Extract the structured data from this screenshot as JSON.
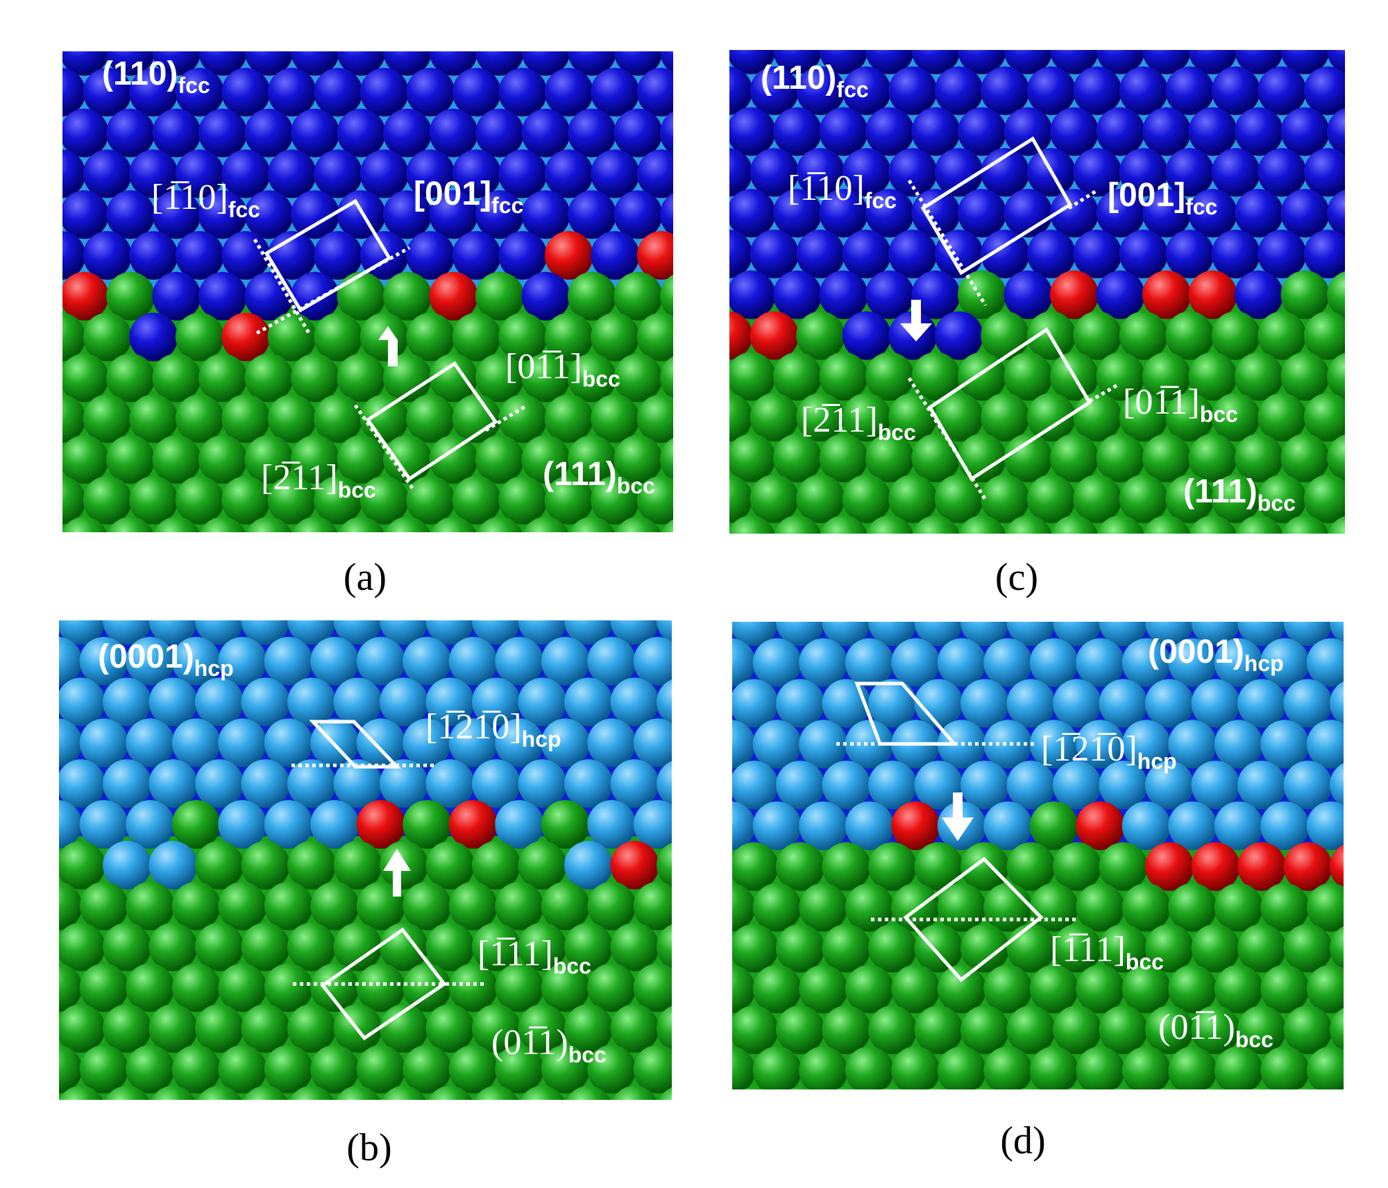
{
  "panels": [
    {
      "caption": "(a)",
      "annotations": [
        {
          "text": "(110)",
          "sub": "fcc"
        },
        {
          "text": "[1̅10]",
          "sub": "fcc"
        },
        {
          "text": "[001]",
          "sub": "fcc"
        },
        {
          "text": "[01̅1]",
          "sub": "bcc"
        },
        {
          "text": "[2̅11]",
          "sub": "bcc"
        },
        {
          "text": "(111)",
          "sub": "bcc"
        }
      ]
    },
    {
      "caption": "(c)",
      "annotations": [
        {
          "text": "(110)",
          "sub": "fcc"
        },
        {
          "text": "[1̅10]",
          "sub": "fcc"
        },
        {
          "text": "[001]",
          "sub": "fcc"
        },
        {
          "text": "[2̅11]",
          "sub": "bcc"
        },
        {
          "text": "[01̅1]",
          "sub": "bcc"
        },
        {
          "text": "(111)",
          "sub": "bcc"
        }
      ]
    },
    {
      "caption": "(b)",
      "annotations": [
        {
          "text": "(0001)",
          "sub": "hcp"
        },
        {
          "text": "[1̅21̅0]",
          "sub": "hcp"
        },
        {
          "text": "[1̅11]",
          "sub": "bcc"
        },
        {
          "text": "(01̅1)",
          "sub": "bcc"
        }
      ]
    },
    {
      "caption": "(d)",
      "annotations": [
        {
          "text": "(0001)",
          "sub": "hcp"
        },
        {
          "text": "[1̅21̅0]",
          "sub": "hcp"
        },
        {
          "text": "[1̅11]",
          "sub": "bcc"
        },
        {
          "text": "(01̅1)",
          "sub": "bcc"
        }
      ]
    }
  ]
}
